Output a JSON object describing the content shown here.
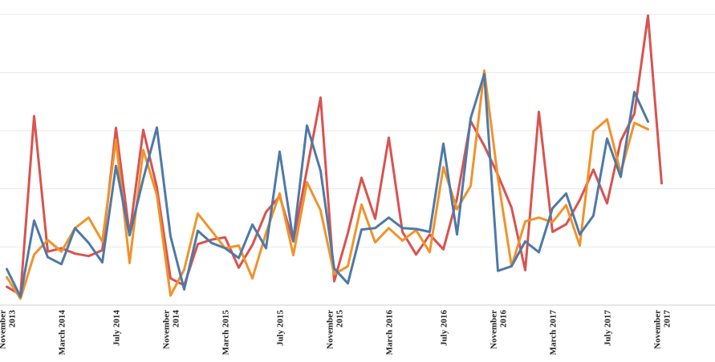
{
  "chart_data": {
    "type": "line",
    "title": "",
    "xlabel": "",
    "ylabel": "",
    "grid": "horizontal",
    "x_range": [
      0,
      50
    ],
    "ylim": [
      0,
      100
    ],
    "y_gridlines": [
      20,
      40,
      60,
      80,
      100
    ],
    "x_ticks": [
      {
        "x": 0,
        "label": [
          "November",
          "2013"
        ]
      },
      {
        "x": 4,
        "label": [
          "March 2014"
        ]
      },
      {
        "x": 8,
        "label": [
          "July 2014"
        ]
      },
      {
        "x": 12,
        "label": [
          "November",
          "2014"
        ]
      },
      {
        "x": 16,
        "label": [
          "March 2015"
        ]
      },
      {
        "x": 20,
        "label": [
          "July 2015"
        ]
      },
      {
        "x": 24,
        "label": [
          "November",
          "2015"
        ]
      },
      {
        "x": 28,
        "label": [
          "March 2016"
        ]
      },
      {
        "x": 32,
        "label": [
          "July 2016"
        ]
      },
      {
        "x": 36,
        "label": [
          "November",
          "2016"
        ]
      },
      {
        "x": 40,
        "label": [
          "March 2017"
        ]
      },
      {
        "x": 44,
        "label": [
          "July 2017"
        ]
      },
      {
        "x": 48,
        "label": [
          "November",
          "2017"
        ]
      }
    ],
    "series": [
      {
        "color": "#d9534f",
        "values": [
          6.3,
          3.6,
          65,
          18.4,
          19.6,
          17.7,
          16.9,
          18.9,
          61,
          24.3,
          60.3,
          40.5,
          9.2,
          6.8,
          21,
          22.5,
          23.3,
          12.9,
          20.7,
          32,
          37.5,
          21.9,
          46.6,
          71.4,
          8.2,
          24.8,
          43.8,
          29.7,
          57.6,
          25.2,
          17.4,
          24.3,
          19.2,
          36.7,
          63.3,
          54.8,
          44.8,
          33.5,
          12,
          66.5,
          25.2,
          27.8,
          36.2,
          46.6,
          35,
          56.5,
          65.8,
          99.6,
          41.9
        ]
      },
      {
        "color": "#f0932b",
        "values": [
          9.6,
          2.2,
          17.4,
          22.4,
          18.4,
          26.5,
          30.1,
          21.9,
          56.9,
          14.5,
          53.4,
          37.9,
          3.3,
          12.2,
          31.5,
          25.6,
          19.6,
          20.5,
          9.2,
          24.8,
          38.4,
          17.2,
          42.3,
          32.6,
          10.6,
          13.4,
          34.6,
          21.6,
          26.5,
          22.2,
          25.8,
          18.2,
          47.5,
          33,
          41,
          80.7,
          43.6,
          13.4,
          28.8,
          30.1,
          28.5,
          34.4,
          20.5,
          59.8,
          63.9,
          45.5,
          62.7,
          60.5
        ]
      },
      {
        "color": "#4e79a7",
        "values": [
          12.4,
          2.9,
          29.1,
          16.5,
          14.1,
          26.5,
          21.4,
          14.7,
          47.9,
          24,
          43.4,
          61.1,
          23.7,
          5.4,
          25.6,
          21.4,
          19.6,
          16.2,
          27.7,
          19.6,
          52.8,
          22.2,
          61.8,
          46.2,
          12.6,
          7.5,
          26,
          26.5,
          30.1,
          26.5,
          26.2,
          25.2,
          55.5,
          24.3,
          64.3,
          79.5,
          11.8,
          13.4,
          21.9,
          18.2,
          33.3,
          38.4,
          24.3,
          30.8,
          57.3,
          44.1,
          73.3,
          63.1
        ]
      }
    ]
  }
}
